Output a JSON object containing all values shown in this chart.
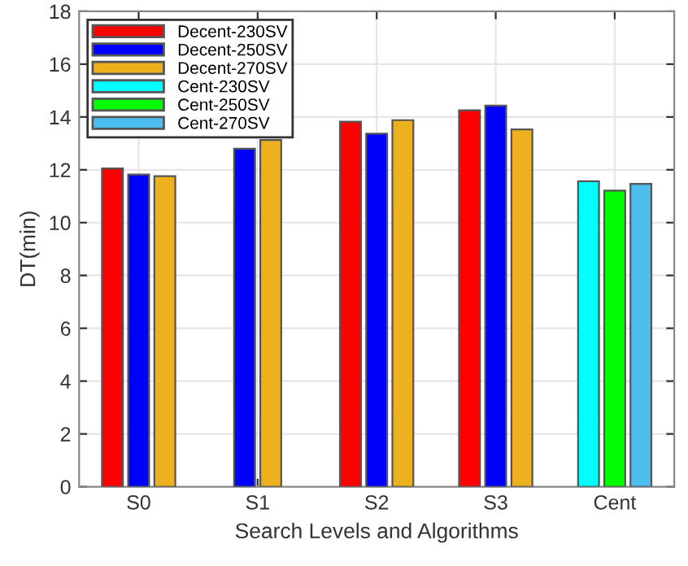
{
  "chart_data": {
    "type": "bar",
    "xlabel": "Search Levels and Algorithms",
    "ylabel": "DT(min)",
    "categories": [
      "S0",
      "S1",
      "S2",
      "S3",
      "Cent"
    ],
    "series": [
      {
        "name": "Decent-230SV",
        "color": "#ff0000",
        "values": [
          12.05,
          null,
          13.82,
          14.25,
          null
        ]
      },
      {
        "name": "Decent-250SV",
        "color": "#0000ff",
        "values": [
          11.82,
          12.8,
          13.37,
          14.43,
          null
        ]
      },
      {
        "name": "Decent-270SV",
        "color": "#edb120",
        "values": [
          11.76,
          13.13,
          13.88,
          13.53,
          null
        ]
      },
      {
        "name": "Cent-230SV",
        "color": "#00ffff",
        "values": [
          null,
          null,
          null,
          null,
          11.57
        ]
      },
      {
        "name": "Cent-250SV",
        "color": "#00ff00",
        "values": [
          null,
          null,
          null,
          null,
          11.21
        ]
      },
      {
        "name": "Cent-270SV",
        "color": "#4dbeee",
        "values": [
          null,
          null,
          null,
          null,
          11.47
        ]
      }
    ],
    "ylim": [
      0,
      18
    ],
    "yticks": [
      0,
      2,
      4,
      6,
      8,
      10,
      12,
      14,
      16,
      18
    ],
    "grid": true,
    "legend": "top left"
  }
}
